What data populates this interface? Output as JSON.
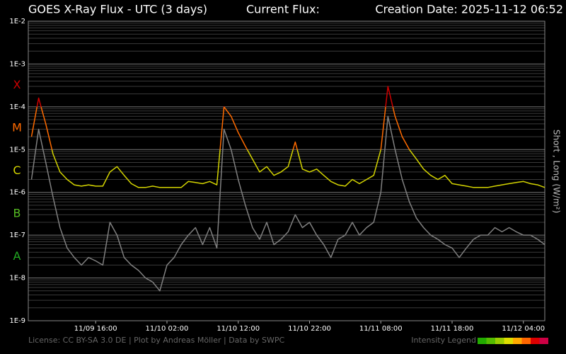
{
  "chart_data": {
    "type": "line",
    "title": "GOES X-Ray Flux - UTC (3 days)",
    "current_flux_label": "Current Flux:",
    "creation_date": "Creation Date: 2025-11-12 06:52",
    "y_label": "Short , Long (W/m²)",
    "footer": "License: CC BY-SA 3.0 DE | Plot by Andreas Möller | Data by SWPC",
    "log_scale": true,
    "grid": true,
    "minor_grid": true,
    "xlim": [
      "11/09 06:33",
      "11/12 07:00"
    ],
    "xticks": [
      "11/09 16:00",
      "11/10 02:00",
      "11/10 12:00",
      "11/10 22:00",
      "11/11 08:00",
      "11/11 18:00",
      "11/12 04:00"
    ],
    "ylim": [
      1e-09,
      0.01
    ],
    "yticks": [
      {
        "value": 1e-09,
        "label": "1E-9"
      },
      {
        "value": 1e-08,
        "label": "1E-8"
      },
      {
        "value": 1e-07,
        "label": "1E-7"
      },
      {
        "value": 1e-06,
        "label": "1E-6"
      },
      {
        "value": 1e-05,
        "label": "1E-5"
      },
      {
        "value": 0.0001,
        "label": "1E-4"
      },
      {
        "value": 0.001,
        "label": "1E-3"
      },
      {
        "value": 0.01,
        "label": "1E-2"
      }
    ],
    "flux_classes": [
      {
        "label": "A",
        "min": 1e-08,
        "color": "#22aa22"
      },
      {
        "label": "B",
        "min": 1e-07,
        "color": "#55bb22"
      },
      {
        "label": "C",
        "min": 1e-06,
        "color": "#d4d400"
      },
      {
        "label": "M",
        "min": 1e-05,
        "color": "#ff6a00"
      },
      {
        "label": "X",
        "min": 0.0001,
        "color": "#cc0000"
      }
    ],
    "intensity_legend": {
      "label": "Intensity Legend",
      "colors": [
        "#22aa00",
        "#55bb00",
        "#99cc00",
        "#dddd00",
        "#ffaa00",
        "#ff6600",
        "#dd0000",
        "#cc0044"
      ]
    },
    "x": [
      "11/09 07:00",
      "11/09 08:00",
      "11/09 09:00",
      "11/09 10:00",
      "11/09 11:00",
      "11/09 12:00",
      "11/09 13:00",
      "11/09 14:00",
      "11/09 15:00",
      "11/09 16:00",
      "11/09 17:00",
      "11/09 18:00",
      "11/09 19:00",
      "11/09 20:00",
      "11/09 21:00",
      "11/09 22:00",
      "11/09 23:00",
      "11/10 00:00",
      "11/10 01:00",
      "11/10 02:00",
      "11/10 03:00",
      "11/10 04:00",
      "11/10 05:00",
      "11/10 06:00",
      "11/10 07:00",
      "11/10 08:00",
      "11/10 09:00",
      "11/10 10:00",
      "11/10 11:00",
      "11/10 12:00",
      "11/10 13:00",
      "11/10 14:00",
      "11/10 15:00",
      "11/10 16:00",
      "11/10 17:00",
      "11/10 18:00",
      "11/10 19:00",
      "11/10 20:00",
      "11/10 21:00",
      "11/10 22:00",
      "11/10 23:00",
      "11/11 00:00",
      "11/11 01:00",
      "11/11 02:00",
      "11/11 03:00",
      "11/11 04:00",
      "11/11 05:00",
      "11/11 06:00",
      "11/11 07:00",
      "11/11 08:00",
      "11/11 09:00",
      "11/11 10:00",
      "11/11 11:00",
      "11/11 12:00",
      "11/11 13:00",
      "11/11 14:00",
      "11/11 15:00",
      "11/11 16:00",
      "11/11 17:00",
      "11/11 18:00",
      "11/11 19:00",
      "11/11 20:00",
      "11/11 21:00",
      "11/11 22:00",
      "11/11 23:00",
      "11/12 00:00",
      "11/12 01:00",
      "11/12 02:00",
      "11/12 03:00",
      "11/12 04:00",
      "11/12 05:00",
      "11/12 06:00",
      "11/12 07:00"
    ],
    "series": [
      {
        "color": "#808080",
        "values": [
          2e-06,
          3e-05,
          5e-06,
          8e-07,
          1.5e-07,
          5e-08,
          3e-08,
          2e-08,
          3e-08,
          2.5e-08,
          2e-08,
          2e-07,
          1e-07,
          3e-08,
          2e-08,
          1.5e-08,
          1e-08,
          8e-09,
          5e-09,
          2e-08,
          3e-08,
          6e-08,
          1e-07,
          1.5e-07,
          6e-08,
          1.5e-07,
          5e-08,
          3e-05,
          1e-05,
          2e-06,
          5e-07,
          1.5e-07,
          8e-08,
          2e-07,
          6e-08,
          8e-08,
          1.2e-07,
          3e-07,
          1.5e-07,
          2e-07,
          1e-07,
          6e-08,
          3e-08,
          8e-08,
          1e-07,
          2e-07,
          1e-07,
          1.5e-07,
          2e-07,
          1e-06,
          6e-05,
          1e-05,
          2e-06,
          6e-07,
          2.5e-07,
          1.5e-07,
          1e-07,
          8e-08,
          6e-08,
          5e-08,
          3e-08,
          5e-08,
          8e-08,
          1e-07,
          1e-07,
          1.5e-07,
          1.2e-07,
          1.5e-07,
          1.2e-07,
          1e-07,
          1e-07,
          8e-08,
          6e-08
        ]
      },
      {
        "color": "#d4d400",
        "color_by_class": true,
        "values": [
          2e-05,
          0.00016,
          4e-05,
          8e-06,
          3e-06,
          2e-06,
          1.5e-06,
          1.4e-06,
          1.5e-06,
          1.4e-06,
          1.4e-06,
          3e-06,
          4e-06,
          2.5e-06,
          1.6e-06,
          1.3e-06,
          1.3e-06,
          1.4e-06,
          1.3e-06,
          1.3e-06,
          1.3e-06,
          1.3e-06,
          1.8e-06,
          1.7e-06,
          1.6e-06,
          1.8e-06,
          1.5e-06,
          0.0001,
          6e-05,
          2.5e-05,
          1.2e-05,
          6e-06,
          3e-06,
          4e-06,
          2.5e-06,
          3e-06,
          4e-06,
          1.5e-05,
          3.5e-06,
          3e-06,
          3.5e-06,
          2.5e-06,
          1.8e-06,
          1.5e-06,
          1.4e-06,
          2e-06,
          1.6e-06,
          2e-06,
          2.5e-06,
          1e-05,
          0.0003,
          6e-05,
          2e-05,
          1e-05,
          6e-06,
          3.5e-06,
          2.5e-06,
          2e-06,
          2.5e-06,
          1.6e-06,
          1.5e-06,
          1.4e-06,
          1.3e-06,
          1.3e-06,
          1.3e-06,
          1.4e-06,
          1.5e-06,
          1.6e-06,
          1.7e-06,
          1.8e-06,
          1.6e-06,
          1.5e-06,
          1.3e-06
        ]
      }
    ]
  }
}
